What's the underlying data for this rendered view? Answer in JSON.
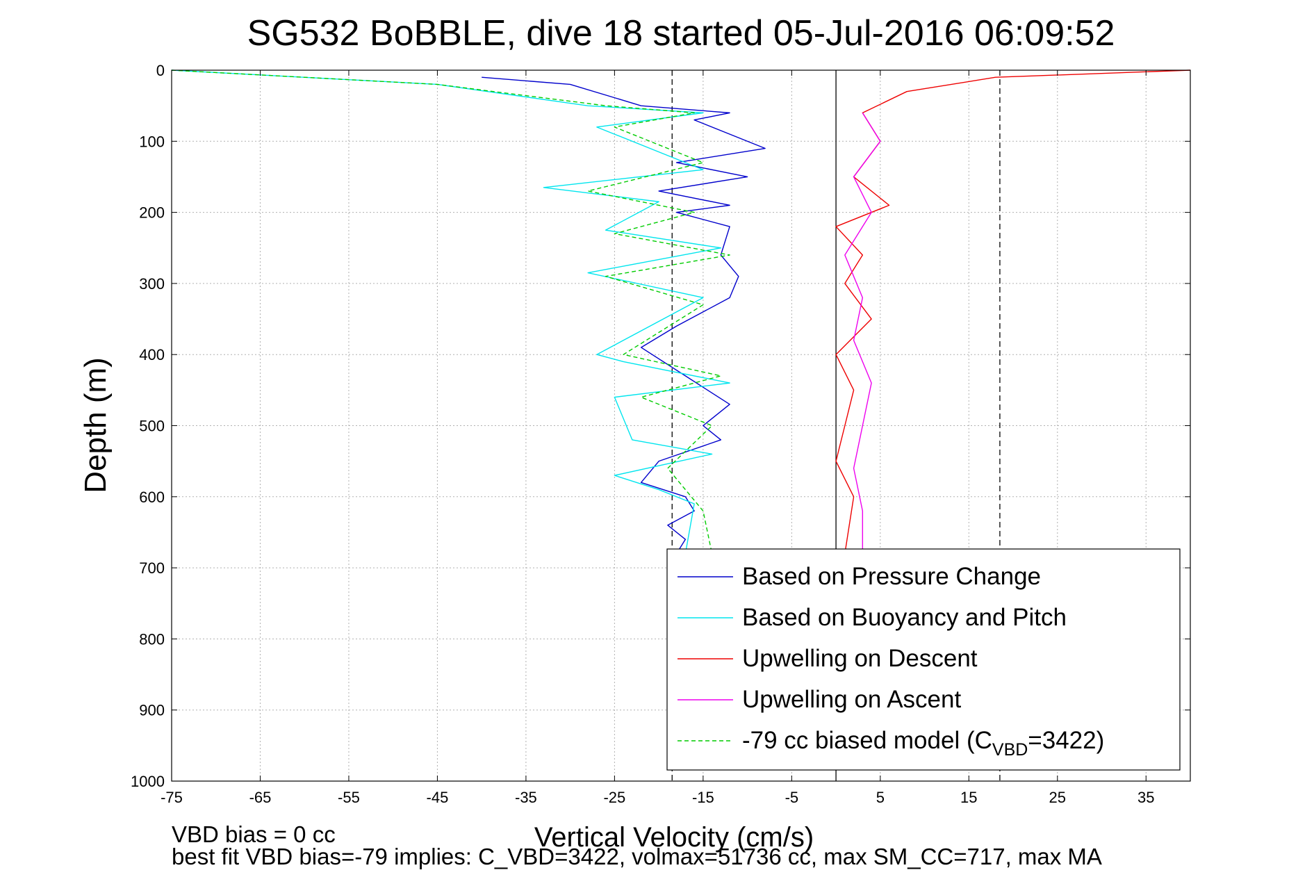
{
  "chart_data": {
    "type": "line",
    "title": "SG532 BoBBLE, dive 18 started 05-Jul-2016 06:09:52",
    "xlabel": "Vertical Velocity (cm/s)",
    "ylabel": "Depth (m)",
    "xlim": [
      -75,
      40
    ],
    "ylim": [
      0,
      1000
    ],
    "y_reversed": true,
    "grid": true,
    "x_ticks": [
      -75,
      -65,
      -55,
      -45,
      -35,
      -25,
      -15,
      -5,
      5,
      15,
      25,
      35
    ],
    "y_ticks": [
      0,
      100,
      200,
      300,
      400,
      500,
      600,
      700,
      800,
      900,
      1000
    ],
    "reference_lines": [
      {
        "x": -18.5,
        "style": "dashed",
        "color": "#000000"
      },
      {
        "x": 0,
        "style": "solid",
        "color": "#000000"
      },
      {
        "x": 18.5,
        "style": "dashed",
        "color": "#000000"
      }
    ],
    "legend_position": "bottom-right",
    "series": [
      {
        "name": "Based on Pressure Change",
        "color": "#0000cc",
        "style": "solid",
        "x": [
          -40,
          -30,
          -22,
          -12,
          -16,
          -8,
          -18,
          -10,
          -20,
          -12,
          -18,
          -12,
          -13,
          -11,
          -12,
          -18,
          -22,
          -17,
          -12,
          -15,
          -13,
          -20,
          -22,
          -17,
          -16,
          -19,
          -17,
          -18,
          -15
        ],
        "y": [
          10,
          20,
          50,
          60,
          70,
          110,
          130,
          150,
          170,
          190,
          200,
          220,
          260,
          290,
          320,
          360,
          390,
          430,
          470,
          500,
          520,
          550,
          580,
          600,
          620,
          640,
          660,
          680,
          700
        ]
      },
      {
        "name": "Based on Buoyancy and Pitch",
        "color": "#00e5ee",
        "style": "solid",
        "x": [
          -75,
          -45,
          -28,
          -15,
          -27,
          -15,
          -33,
          -20,
          -26,
          -13,
          -28,
          -15,
          -27,
          -24,
          -12,
          -25,
          -23,
          -14,
          -25,
          -20,
          -16,
          -17
        ],
        "y": [
          0,
          20,
          50,
          60,
          80,
          140,
          165,
          185,
          225,
          250,
          285,
          320,
          400,
          410,
          440,
          460,
          520,
          540,
          570,
          590,
          610,
          680
        ]
      },
      {
        "name": "Upwelling on Descent",
        "color": "#ee0000",
        "style": "solid",
        "x": [
          40,
          18,
          8,
          3,
          5,
          2,
          6,
          0,
          3,
          1,
          4,
          0,
          2,
          1,
          0,
          2,
          1
        ],
        "y": [
          0,
          10,
          30,
          60,
          100,
          150,
          190,
          220,
          260,
          300,
          350,
          400,
          450,
          500,
          550,
          600,
          680
        ]
      },
      {
        "name": "Upwelling on Ascent",
        "color": "#ee00ee",
        "style": "solid",
        "x": [
          3,
          5,
          2,
          4,
          1,
          3,
          2,
          4,
          3,
          2,
          3,
          3
        ],
        "y": [
          60,
          100,
          150,
          200,
          260,
          320,
          380,
          440,
          500,
          560,
          620,
          680
        ]
      },
      {
        "name": "-79 cc biased model (C",
        "name_sub": "VBD",
        "name_suffix": "=3422)",
        "color": "#00cc00",
        "style": "dashed",
        "x": [
          -75,
          -45,
          -26,
          -16,
          -25,
          -15,
          -28,
          -16,
          -25,
          -12,
          -26,
          -15,
          -24,
          -13,
          -22,
          -14,
          -19,
          -15,
          -14
        ],
        "y": [
          0,
          20,
          50,
          60,
          80,
          130,
          170,
          200,
          230,
          260,
          290,
          330,
          400,
          430,
          460,
          500,
          560,
          620,
          680
        ]
      }
    ]
  },
  "footer": {
    "line1": "VBD bias = 0 cc",
    "line2": "best fit VBD bias=-79 implies: C_VBD=3422, volmax=51736 cc, max SM_CC=717, max MA"
  }
}
